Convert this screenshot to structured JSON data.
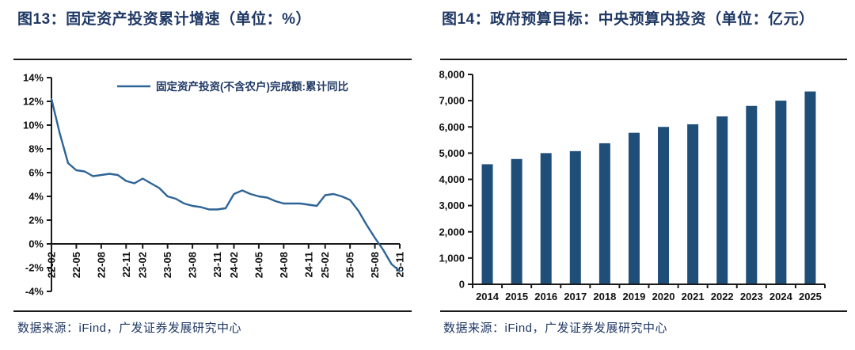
{
  "left_panel": {
    "title": "图13：固定资产投资累计增速（单位：%）",
    "source": "数据来源：iFind，广发证券发展研究中心"
  },
  "right_panel": {
    "title": "图14：政府预算目标：中央预算内投资（单位：亿元）",
    "source": "数据来源：iFind，广发证券发展研究中心"
  },
  "colors": {
    "title_navy": "#1f3864",
    "axis_black": "#1a1a1a"
  },
  "chart_data": [
    {
      "type": "line",
      "title": "图13：固定资产投资累计增速（单位：%）",
      "legend": [
        "固定资产投资(不含农户)完成额:累计同比"
      ],
      "legend_position": "top",
      "grid": false,
      "line_color": "#2f6496",
      "xlabel": "",
      "ylabel": "",
      "ylim": [
        -4,
        14
      ],
      "ytick_values": [
        14,
        12,
        10,
        8,
        6,
        4,
        2,
        0,
        -2,
        -4
      ],
      "ytick_labels": [
        "14%",
        "12%",
        "10%",
        "8%",
        "6%",
        "4%",
        "2%",
        "0%",
        "-2%",
        "-4%"
      ],
      "x": [
        "22-02",
        "22-03",
        "22-04",
        "22-05",
        "22-06",
        "22-07",
        "22-08",
        "22-09",
        "22-10",
        "22-11",
        "22-12",
        "23-02",
        "23-03",
        "23-04",
        "23-05",
        "23-06",
        "23-07",
        "23-08",
        "23-09",
        "23-10",
        "23-11",
        "23-12",
        "24-02",
        "24-03",
        "24-04",
        "24-05",
        "24-06",
        "24-07",
        "24-08",
        "24-09",
        "24-10",
        "24-11",
        "24-12",
        "25-02",
        "25-03",
        "25-04",
        "25-05",
        "25-06",
        "25-07",
        "25-08",
        "25-09",
        "25-10",
        "25-11"
      ],
      "values": [
        12.2,
        9.3,
        6.8,
        6.2,
        6.1,
        5.7,
        5.8,
        5.9,
        5.8,
        5.3,
        5.1,
        5.5,
        5.1,
        4.7,
        4.0,
        3.8,
        3.4,
        3.2,
        3.1,
        2.9,
        2.9,
        3.0,
        4.2,
        4.5,
        4.2,
        4.0,
        3.9,
        3.6,
        3.4,
        3.4,
        3.4,
        3.3,
        3.2,
        4.1,
        4.2,
        4.0,
        3.7,
        2.8,
        1.6,
        0.5,
        -0.5,
        -1.7,
        -2.3
      ],
      "xtick_indices": [
        0,
        3,
        6,
        9,
        11,
        14,
        17,
        20,
        22,
        25,
        28,
        31,
        33,
        36,
        39,
        42
      ],
      "xtick_labels": [
        "22-02",
        "22-05",
        "22-08",
        "22-11",
        "23-02",
        "23-05",
        "23-08",
        "23-11",
        "24-02",
        "24-05",
        "24-08",
        "24-11",
        "25-02",
        "25-05",
        "25-08",
        "25-11"
      ]
    },
    {
      "type": "bar",
      "title": "图14：政府预算目标：中央预算内投资（单位：亿元）",
      "grid": false,
      "bar_color": "#1f4e79",
      "xlabel": "",
      "ylabel": "",
      "ylim": [
        0,
        8000
      ],
      "ytick_values": [
        0,
        1000,
        2000,
        3000,
        4000,
        5000,
        6000,
        7000,
        8000
      ],
      "ytick_labels": [
        "0",
        "1,000",
        "2,000",
        "3,000",
        "4,000",
        "5,000",
        "6,000",
        "7,000",
        "8,000"
      ],
      "categories": [
        "2014",
        "2015",
        "2016",
        "2017",
        "2018",
        "2019",
        "2020",
        "2021",
        "2022",
        "2023",
        "2024",
        "2025"
      ],
      "values": [
        4576,
        4776,
        5000,
        5076,
        5376,
        5776,
        6000,
        6100,
        6400,
        6800,
        7000,
        7350
      ]
    }
  ]
}
